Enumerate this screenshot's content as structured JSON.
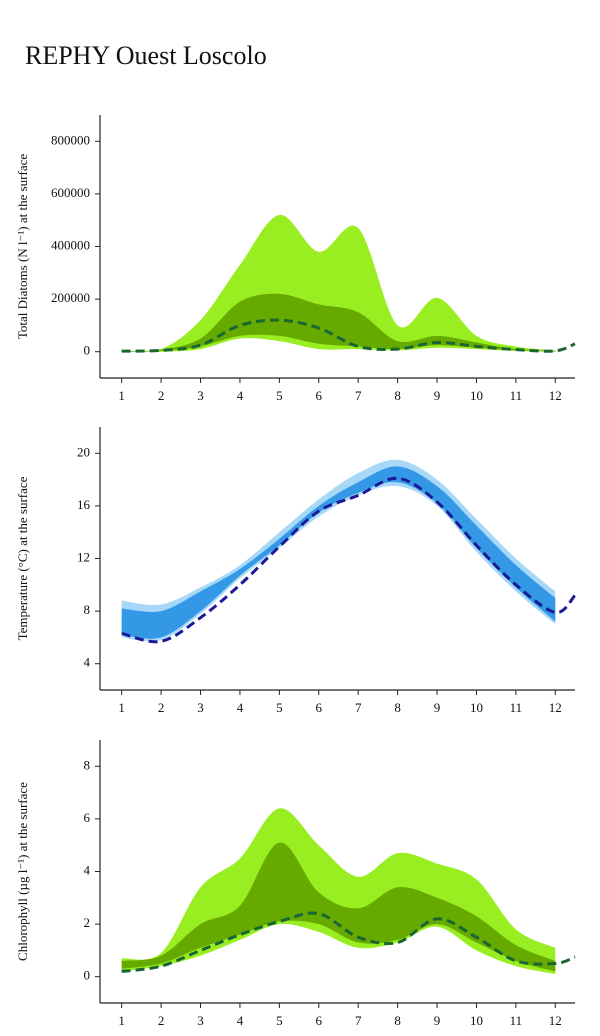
{
  "title": "REPHY Ouest Loscolo",
  "chart_data": [
    {
      "type": "band",
      "ylabel": "Total Diatoms (N l⁻¹) at the surface",
      "x": [
        1,
        2,
        3,
        4,
        5,
        6,
        7,
        8,
        9,
        10,
        11,
        12
      ],
      "xlim": [
        0.45,
        12.5
      ],
      "xticks": [
        1,
        2,
        3,
        4,
        5,
        6,
        7,
        8,
        9,
        10,
        11,
        12
      ],
      "ylim": [
        -100000,
        900000
      ],
      "yticks": [
        0,
        200000,
        400000,
        600000,
        800000
      ],
      "bands": [
        {
          "color": "#99ee22",
          "lower": [
            0,
            0,
            10000,
            50000,
            40000,
            10000,
            10000,
            5000,
            15000,
            10000,
            3000,
            0
          ],
          "upper": [
            5000,
            10000,
            120000,
            330000,
            520000,
            380000,
            470000,
            100000,
            205000,
            60000,
            20000,
            5000
          ]
        },
        {
          "color": "#66aa00",
          "lower": [
            0,
            3000,
            20000,
            60000,
            60000,
            30000,
            20000,
            10000,
            25000,
            15000,
            5000,
            0
          ],
          "upper": [
            2000,
            8000,
            50000,
            190000,
            220000,
            180000,
            150000,
            40000,
            60000,
            35000,
            10000,
            3000
          ]
        }
      ],
      "line": {
        "color": "#1a6633",
        "x": [
          1,
          2,
          3,
          4,
          5,
          6,
          7,
          8,
          9,
          10,
          11,
          12,
          12.5
        ],
        "values": [
          2000,
          5000,
          25000,
          100000,
          120000,
          90000,
          20000,
          10000,
          35000,
          20000,
          8000,
          3000,
          30000
        ]
      }
    },
    {
      "type": "band",
      "ylabel": "Temperature (°C) at the surface",
      "x": [
        1,
        2,
        3,
        4,
        5,
        6,
        7,
        8,
        9,
        10,
        11,
        12
      ],
      "xlim": [
        0.45,
        12.5
      ],
      "xticks": [
        1,
        2,
        3,
        4,
        5,
        6,
        7,
        8,
        9,
        10,
        11,
        12
      ],
      "ylim": [
        2,
        22
      ],
      "yticks": [
        4,
        8,
        12,
        16,
        20
      ],
      "bands": [
        {
          "color": "#a8d8f8",
          "lower": [
            6,
            5.8,
            7.8,
            10.5,
            12.8,
            15.2,
            16.8,
            17.5,
            16,
            12.5,
            9.5,
            7
          ],
          "upper": [
            8.8,
            8.5,
            9.8,
            11.5,
            14,
            16.5,
            18.5,
            19.5,
            18,
            15,
            12,
            9.5
          ]
        },
        {
          "color": "#3399e6",
          "lower": [
            6.2,
            6,
            8,
            10.7,
            13,
            15.5,
            17,
            17.8,
            16.2,
            12.8,
            9.8,
            7.2
          ],
          "upper": [
            8.2,
            8,
            9.5,
            11.2,
            13.5,
            16,
            17.8,
            19,
            17.5,
            14.5,
            11.5,
            9
          ]
        }
      ],
      "line": {
        "color": "#1a1a99",
        "x": [
          1,
          2,
          3,
          4,
          5,
          6,
          7,
          8,
          9,
          10,
          11,
          12,
          12.5
        ],
        "values": [
          6.3,
          5.7,
          7.5,
          10,
          12.9,
          15.6,
          16.8,
          18.1,
          16.3,
          13,
          10,
          7.9,
          9.2
        ]
      }
    },
    {
      "type": "band",
      "ylabel": "Chlorophyll (µg l⁻¹) at the surface",
      "x": [
        1,
        2,
        3,
        4,
        5,
        6,
        7,
        8,
        9,
        10,
        11,
        12
      ],
      "xlim": [
        0.45,
        12.5
      ],
      "xticks": [
        1,
        2,
        3,
        4,
        5,
        6,
        7,
        8,
        9,
        10,
        11,
        12
      ],
      "ylim": [
        -1,
        9
      ],
      "yticks": [
        0,
        2,
        4,
        6,
        8
      ],
      "bands": [
        {
          "color": "#99ee22",
          "lower": [
            0.2,
            0.4,
            0.8,
            1.4,
            2,
            1.7,
            1.1,
            1.3,
            1.9,
            1,
            0.4,
            0.1
          ],
          "upper": [
            0.7,
            0.9,
            3.4,
            4.5,
            6.4,
            5,
            3.8,
            4.7,
            4.3,
            3.7,
            1.8,
            1.1
          ]
        },
        {
          "color": "#66aa00",
          "lower": [
            0.3,
            0.5,
            1.1,
            1.6,
            2.1,
            2,
            1.3,
            1.4,
            2,
            1.3,
            0.6,
            0.2
          ],
          "upper": [
            0.6,
            0.8,
            2,
            2.7,
            5.1,
            3.2,
            2.6,
            3.4,
            3,
            2.3,
            1.2,
            0.6
          ]
        }
      ],
      "line": {
        "color": "#1a6633",
        "x": [
          1,
          2,
          3,
          4,
          5,
          6,
          7,
          8,
          9,
          10,
          11,
          12,
          12.5
        ],
        "values": [
          0.2,
          0.4,
          1,
          1.6,
          2.1,
          2.4,
          1.5,
          1.3,
          2.2,
          1.5,
          0.6,
          0.5,
          0.75
        ]
      }
    }
  ]
}
